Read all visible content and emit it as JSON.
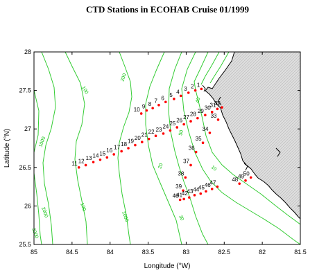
{
  "title": "CTD Stations in ECOHAB Cruise 01/1999",
  "xlabel": "Longitude (°W)",
  "ylabel": "Latitude (°N)",
  "colors": {
    "contour": "#33cc33",
    "station": "#ff0000",
    "land": "#d4d4d4",
    "coast": "#000000"
  },
  "xlim": [
    85,
    81.5
  ],
  "ylim": [
    25.5,
    28
  ],
  "x_ticks": [
    "85",
    "84.5",
    "84",
    "83.5",
    "83",
    "82.5",
    "82",
    "81.5"
  ],
  "y_ticks": [
    "28",
    "27.5",
    "27",
    "26.5",
    "26",
    "25.5"
  ],
  "contour_labels": [
    "10",
    "20",
    "30",
    "40",
    "50",
    "100",
    "200",
    "1000",
    "2000",
    "3000"
  ],
  "stations": [
    {
      "id": "1",
      "lon": 82.8,
      "lat": 27.52
    },
    {
      "id": "2",
      "lon": 82.88,
      "lat": 27.5
    },
    {
      "id": "3",
      "lon": 82.97,
      "lat": 27.47
    },
    {
      "id": "4",
      "lon": 83.07,
      "lat": 27.43
    },
    {
      "id": "5",
      "lon": 83.16,
      "lat": 27.39
    },
    {
      "id": "6",
      "lon": 83.27,
      "lat": 27.35
    },
    {
      "id": "7",
      "lon": 83.36,
      "lat": 27.31
    },
    {
      "id": "8",
      "lon": 83.44,
      "lat": 27.27
    },
    {
      "id": "9",
      "lon": 83.52,
      "lat": 27.24
    },
    {
      "id": "10",
      "lon": 83.59,
      "lat": 27.2
    },
    {
      "id": "11",
      "lon": 84.41,
      "lat": 26.5
    },
    {
      "id": "12",
      "lon": 84.32,
      "lat": 26.53
    },
    {
      "id": "13",
      "lon": 84.22,
      "lat": 26.57
    },
    {
      "id": "14",
      "lon": 84.13,
      "lat": 26.6
    },
    {
      "id": "15",
      "lon": 84.04,
      "lat": 26.63
    },
    {
      "id": "16",
      "lon": 83.95,
      "lat": 26.67
    },
    {
      "id": "17",
      "lon": 83.85,
      "lat": 26.71
    },
    {
      "id": "18",
      "lon": 83.76,
      "lat": 26.75
    },
    {
      "id": "19",
      "lon": 83.67,
      "lat": 26.79
    },
    {
      "id": "20",
      "lon": 83.58,
      "lat": 26.83
    },
    {
      "id": "21",
      "lon": 83.49,
      "lat": 26.87
    },
    {
      "id": "22",
      "lon": 83.4,
      "lat": 26.91
    },
    {
      "id": "23",
      "lon": 83.3,
      "lat": 26.94
    },
    {
      "id": "24",
      "lon": 83.21,
      "lat": 26.98
    },
    {
      "id": "25",
      "lon": 83.12,
      "lat": 27.02
    },
    {
      "id": "26",
      "lon": 83.03,
      "lat": 27.06
    },
    {
      "id": "27",
      "lon": 82.94,
      "lat": 27.1
    },
    {
      "id": "28",
      "lon": 82.85,
      "lat": 27.14
    },
    {
      "id": "29",
      "lon": 82.75,
      "lat": 27.18
    },
    {
      "id": "30",
      "lon": 82.66,
      "lat": 27.22
    },
    {
      "id": "31",
      "lon": 82.59,
      "lat": 27.26
    },
    {
      "id": "32",
      "lon": 82.53,
      "lat": 27.28
    },
    {
      "id": "33",
      "lon": 82.58,
      "lat": 27.12
    },
    {
      "id": "34",
      "lon": 82.69,
      "lat": 26.95
    },
    {
      "id": "35",
      "lon": 82.78,
      "lat": 26.82
    },
    {
      "id": "36",
      "lon": 82.87,
      "lat": 26.7
    },
    {
      "id": "37",
      "lon": 82.94,
      "lat": 26.53
    },
    {
      "id": "38",
      "lon": 83.01,
      "lat": 26.37
    },
    {
      "id": "39",
      "lon": 83.04,
      "lat": 26.2
    },
    {
      "id": "40",
      "lon": 83.08,
      "lat": 26.08
    },
    {
      "id": "41",
      "lon": 83.03,
      "lat": 26.09
    },
    {
      "id": "42",
      "lon": 82.96,
      "lat": 26.11
    },
    {
      "id": "43",
      "lon": 82.89,
      "lat": 26.14
    },
    {
      "id": "44",
      "lon": 82.81,
      "lat": 26.16
    },
    {
      "id": "45",
      "lon": 82.74,
      "lat": 26.19
    },
    {
      "id": "46",
      "lon": 82.66,
      "lat": 26.22
    },
    {
      "id": "47",
      "lon": 82.59,
      "lat": 26.25
    },
    {
      "id": "48",
      "lon": 82.3,
      "lat": 26.29
    },
    {
      "id": "49",
      "lon": 82.22,
      "lat": 26.33
    },
    {
      "id": "50",
      "lon": 82.15,
      "lat": 26.37
    }
  ]
}
